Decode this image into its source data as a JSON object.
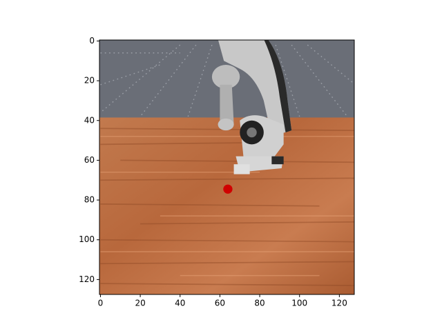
{
  "chart_data": {
    "type": "image",
    "xlim": [
      -0.5,
      127.5
    ],
    "ylim": [
      127.5,
      -0.5
    ],
    "xticks": [
      0,
      20,
      40,
      60,
      80,
      100,
      120
    ],
    "yticks": [
      0,
      20,
      40,
      60,
      80,
      100,
      120
    ]
  }
}
